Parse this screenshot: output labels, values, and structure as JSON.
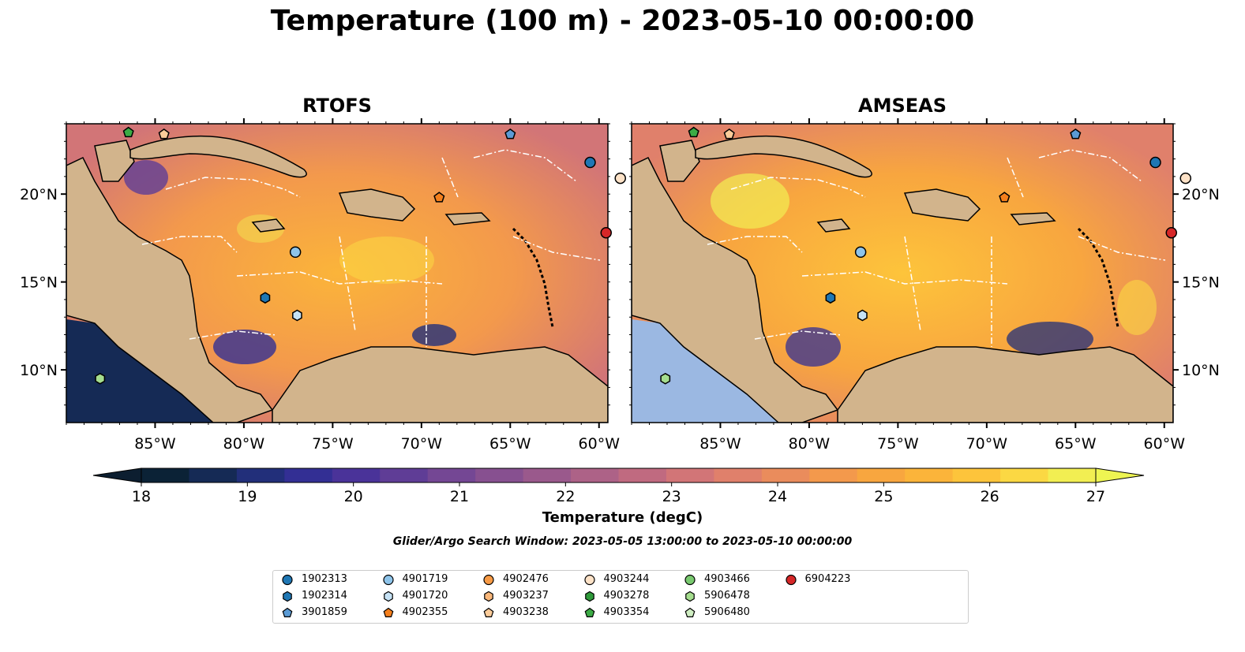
{
  "title": "Temperature (100 m) - 2023-05-10 00:00:00",
  "panels": [
    {
      "name": "RTOFS"
    },
    {
      "name": "AMSEAS"
    }
  ],
  "map_axes": {
    "lon_ticks": [
      "85°W",
      "80°W",
      "75°W",
      "70°W",
      "65°W",
      "60°W"
    ],
    "lat_ticks": [
      "20°N",
      "15°N",
      "10°N"
    ],
    "lon_range": [
      -90,
      -59.5
    ],
    "lat_range": [
      7,
      24
    ]
  },
  "colorbar": {
    "label": "Temperature (degC)",
    "ticks": [
      "18",
      "19",
      "20",
      "21",
      "22",
      "23",
      "24",
      "25",
      "26",
      "27"
    ],
    "range": [
      18,
      27
    ],
    "extend": "both",
    "colors": [
      "#0b2236",
      "#152a55",
      "#222f7a",
      "#332f94",
      "#4a3399",
      "#5f3d96",
      "#744794",
      "#875090",
      "#9a598c",
      "#ad6287",
      "#c06a80",
      "#d27577",
      "#e0806b",
      "#ea8c5c",
      "#f3994c",
      "#f8a63f",
      "#fbb43a",
      "#fdc43b",
      "#fbd843",
      "#f2ee52"
    ],
    "under_color": "#0c1e30",
    "over_color": "#eef552"
  },
  "search_window": "Glider/Argo Search Window: 2023-05-05 13:00:00 to 2023-05-10 00:00:00",
  "legend": [
    {
      "id": "1902313",
      "marker": "circle",
      "color": "#1f77b4"
    },
    {
      "id": "1902314",
      "marker": "hexagon",
      "color": "#1f77b4"
    },
    {
      "id": "3901859",
      "marker": "pentagon",
      "color": "#5b9bd5"
    },
    {
      "id": "4901719",
      "marker": "circle",
      "color": "#8ec4ea"
    },
    {
      "id": "4901720",
      "marker": "hexagon",
      "color": "#c6e2f5"
    },
    {
      "id": "4902355",
      "marker": "pentagon",
      "color": "#f47f1c"
    },
    {
      "id": "4902476",
      "marker": "circle",
      "color": "#f79a45"
    },
    {
      "id": "4903237",
      "marker": "hexagon",
      "color": "#f9b77a"
    },
    {
      "id": "4903238",
      "marker": "pentagon",
      "color": "#fbcc9a"
    },
    {
      "id": "4903244",
      "marker": "circle",
      "color": "#fde2c7"
    },
    {
      "id": "4903278",
      "marker": "hexagon",
      "color": "#2f9a3a"
    },
    {
      "id": "4903354",
      "marker": "pentagon",
      "color": "#3cab45"
    },
    {
      "id": "4903466",
      "marker": "circle",
      "color": "#79c96f"
    },
    {
      "id": "5906478",
      "marker": "hexagon",
      "color": "#a5dd8e"
    },
    {
      "id": "5906480",
      "marker": "pentagon",
      "color": "#cfeec2"
    },
    {
      "id": "6904223",
      "marker": "circle",
      "color": "#d62728"
    }
  ],
  "floats": [
    {
      "id": "4903354",
      "lon": -86.5,
      "lat": 23.5
    },
    {
      "id": "4903238",
      "lon": -84.5,
      "lat": 23.4
    },
    {
      "id": "3901859",
      "lon": -65.0,
      "lat": 23.4
    },
    {
      "id": "1902313",
      "lon": -60.5,
      "lat": 21.8
    },
    {
      "id": "4903244",
      "lon": -58.8,
      "lat": 20.9
    },
    {
      "id": "4902355",
      "lon": -69.0,
      "lat": 19.8
    },
    {
      "id": "6904223",
      "lon": -59.6,
      "lat": 17.8
    },
    {
      "id": "4901719",
      "lon": -77.1,
      "lat": 16.7
    },
    {
      "id": "1902314",
      "lon": -78.8,
      "lat": 14.1
    },
    {
      "id": "4901720",
      "lon": -77.0,
      "lat": 13.1
    },
    {
      "id": "5906478",
      "lon": -88.1,
      "lat": 9.5
    }
  ],
  "colors": {
    "land": "#d2b48c",
    "shallow_water": "#9bb8e2",
    "boundary": "#ffffff"
  }
}
